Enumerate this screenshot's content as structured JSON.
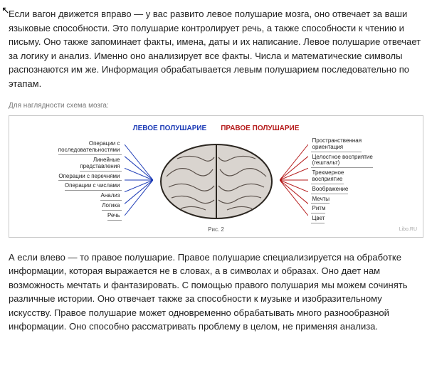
{
  "cursor_glyph": "↖",
  "paragraph_top": "Если вагон движется вправо — у вас развито левое полушарие мозга, оно отвечает за ваши языковые способности. Это полушарие контролирует речь, а также способности к чтению и письму. Оно также запоминает факты, имена, даты и их написание. Левое полушарие отвечает за логику и анализ. Именно оно анализирует все факты. Числа и математические символы распознаются им же. Информация обрабатывается левым полушарием последовательно по этапам.",
  "subcaption": "Для наглядности схема мозга:",
  "diagram": {
    "title_left": "ЛЕВОЕ ПОЛУШАРИЕ",
    "title_right": "ПРАВОЕ ПОЛУШАРИЕ",
    "left_labels": [
      "Операции с\nпоследовательностями",
      "Линейные\nпредставления",
      "Операции с перечнями",
      "Операции с числами",
      "Анализ",
      "Логика",
      "Речь"
    ],
    "right_labels": [
      "Пространственная\nориентация",
      "Целостное восприятие\n(гештальт)",
      "Трехмерное\nвосприятие",
      "Воображение",
      "Мечты",
      "Ритм",
      "Цвет"
    ],
    "fig_caption": "Рис. 2",
    "watermark": "Libo.RU",
    "colors": {
      "left_lines": "#1a39b5",
      "right_lines": "#b51a1a",
      "brain_fill": "#d9d4cf",
      "brain_stroke": "#5a504a",
      "brain_outline": "#2b2620",
      "background": "#ffffff",
      "border": "#c8c8c8",
      "label_underline": "#999999"
    },
    "label_fontsize": 8,
    "title_fontsize": 10,
    "brain_width": 170,
    "brain_height": 120,
    "fan_width": 40
  },
  "paragraph_bottom": "А если влево — то правое полушарие. Правое полушарие специализируется на обработке информации, которая выражается не в словах, а в символах и образах. Оно дает нам возможность мечтать и фантазировать. С помощью правого полушария мы можем сочинять различные истории. Оно отвечает также за способности к музыке и изобразительному искусству. Правое полушарие может одновременно обрабатывать много разнообразной информации. Оно способно рассматривать проблему в целом, не применяя анализа."
}
